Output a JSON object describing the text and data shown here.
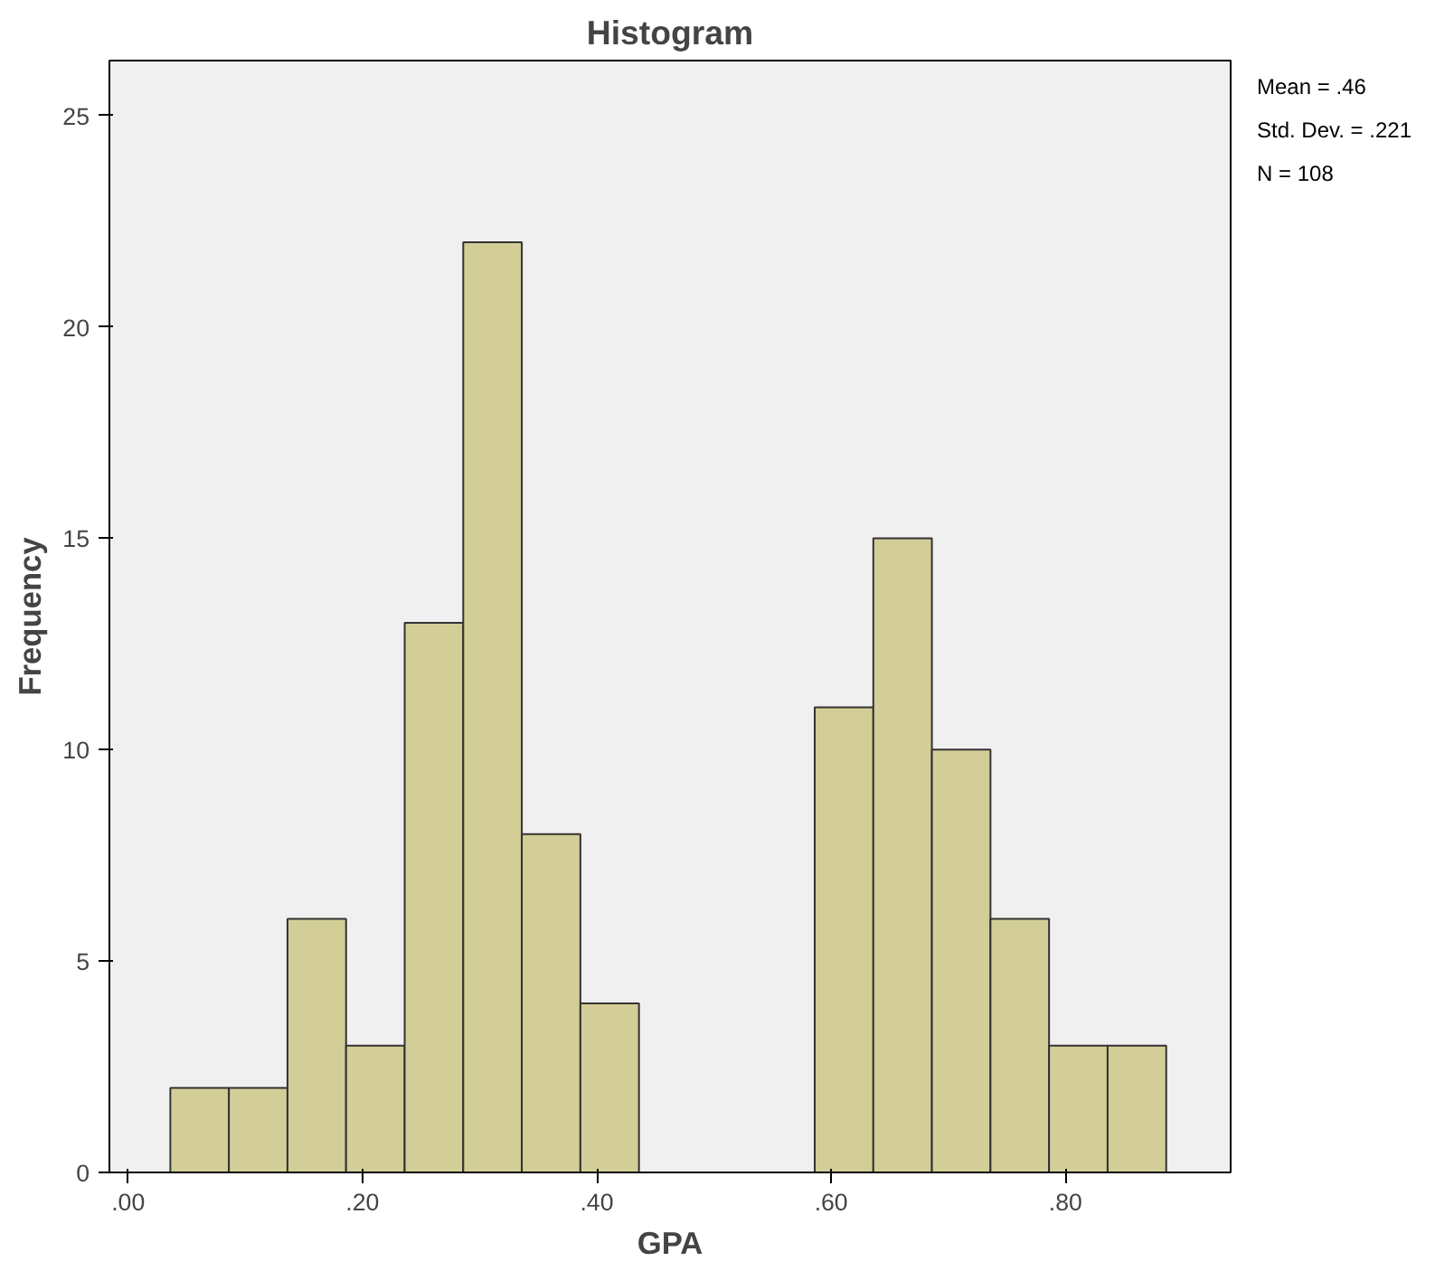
{
  "chart_data": {
    "type": "histogram",
    "title": "Histogram",
    "xlabel": "GPA",
    "ylabel": "Frequency",
    "bins": [
      0.036,
      0.086,
      0.136,
      0.186,
      0.236,
      0.286,
      0.336,
      0.386,
      0.436,
      0.486,
      0.536,
      0.586,
      0.636,
      0.686,
      0.736,
      0.786,
      0.836,
      0.886
    ],
    "values": [
      2,
      2,
      6,
      3,
      13,
      22,
      8,
      4,
      0,
      0,
      0,
      11,
      15,
      10,
      6,
      3,
      3
    ],
    "color": "#d3ce97",
    "xlim": [
      -0.016,
      0.941
    ],
    "ylim": [
      0,
      26.3
    ],
    "xticks": [
      {
        "value": 0,
        "label": ".00"
      },
      {
        "value": 0.2,
        "label": ".20"
      },
      {
        "value": 0.4,
        "label": ".40"
      },
      {
        "value": 0.6,
        "label": ".60"
      },
      {
        "value": 0.8,
        "label": ".80"
      }
    ],
    "yticks": [
      0,
      5,
      10,
      15,
      20,
      25
    ],
    "annotations": [
      "Mean = .46",
      "Std. Dev. = .221",
      "N = 108"
    ],
    "grid": false
  }
}
